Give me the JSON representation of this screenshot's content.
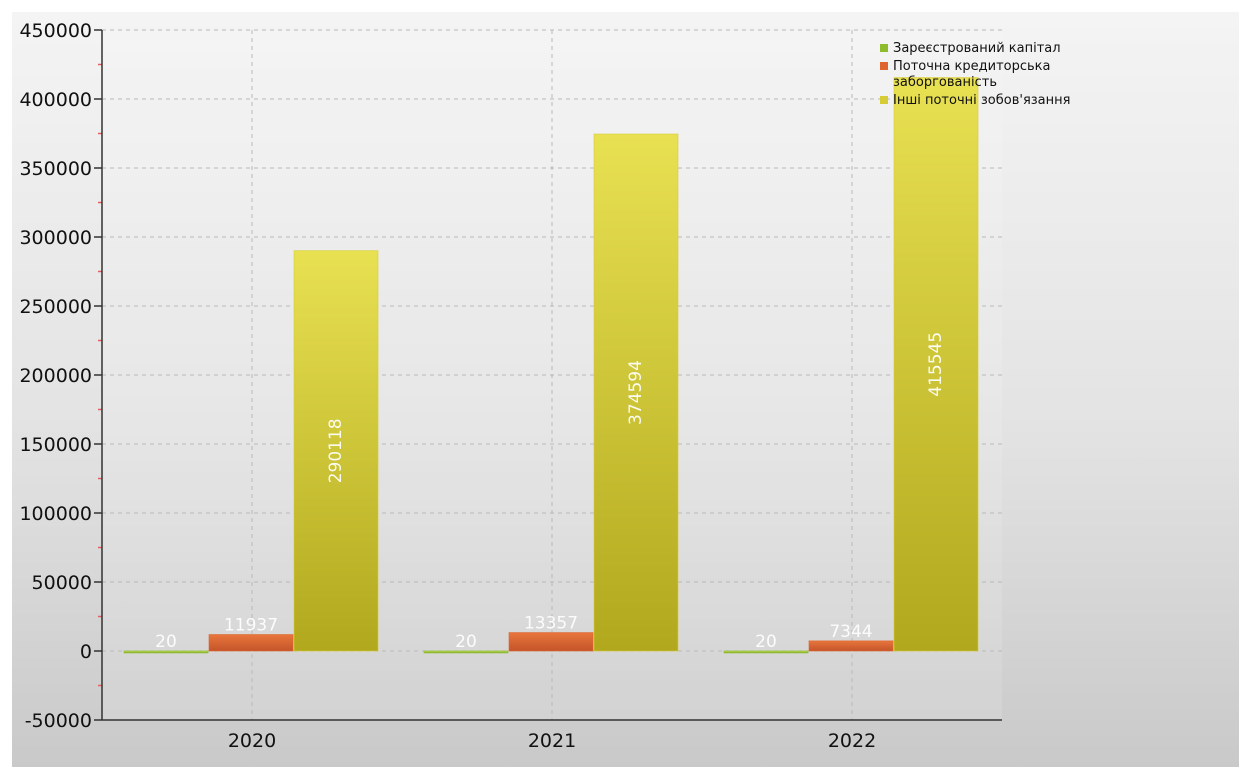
{
  "chart_data": {
    "type": "bar",
    "categories": [
      "2020",
      "2021",
      "2022"
    ],
    "series": [
      {
        "name": "Зареєстрований капітал",
        "values": [
          20,
          20,
          20
        ],
        "color": "#8dbd2a"
      },
      {
        "name": "Поточна кредиторська заборгованість",
        "values": [
          11937,
          13357,
          7344
        ],
        "color": "#dd6630"
      },
      {
        "name": "Інші поточні зобов'язання",
        "values": [
          290118,
          374594,
          415545
        ],
        "color": "#d6cc36"
      }
    ],
    "legend_lines": [
      [
        "Зареєстрований капітал"
      ],
      [
        "Поточна кредиторська",
        "заборгованість"
      ],
      [
        "Інші поточні зобов'язання"
      ]
    ],
    "ylim": [
      -50000,
      450000
    ],
    "y_ticks": [
      "-50000",
      "0",
      "50000",
      "100000",
      "150000",
      "200000",
      "250000",
      "300000",
      "350000",
      "400000",
      "450000"
    ],
    "grid": true,
    "legend_position": "top-right"
  }
}
